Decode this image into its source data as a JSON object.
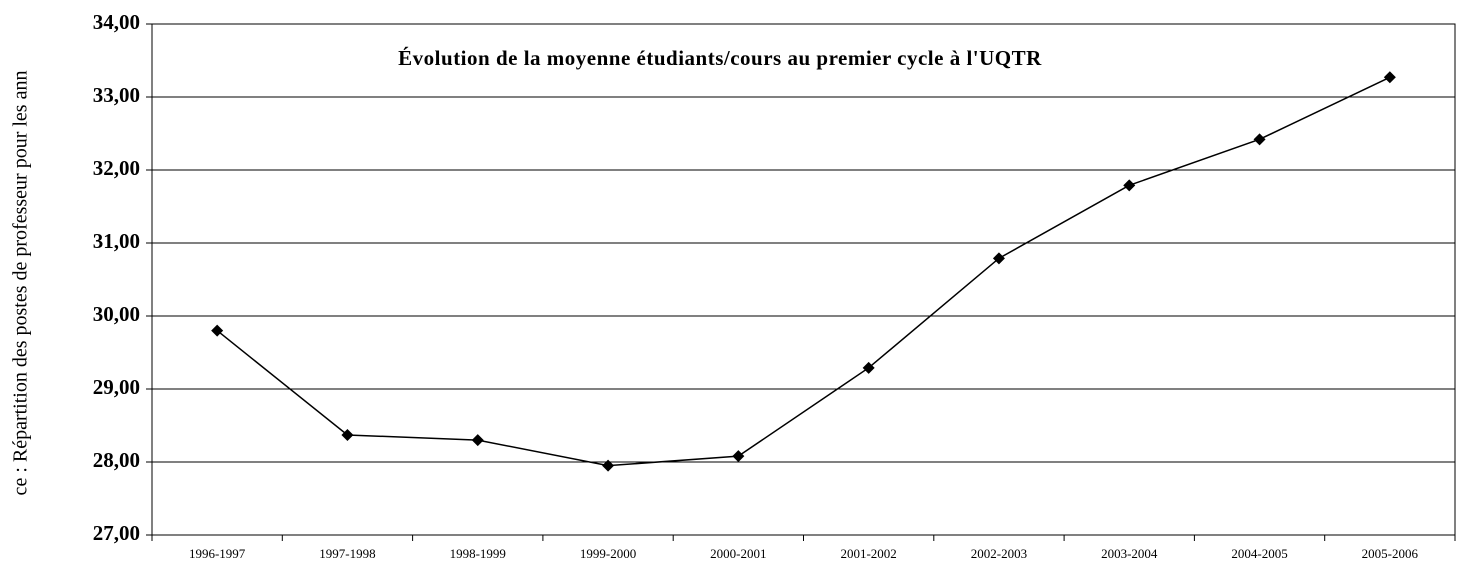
{
  "chart_data": {
    "type": "line",
    "title": "Évolution de la moyenne étudiants/cours au premier cycle à l'UQTR",
    "side_text": "ce : Répartition des postes de professeur pour les ann",
    "categories": [
      "1996-1997",
      "1997-1998",
      "1998-1999",
      "1999-2000",
      "2000-2001",
      "2001-2002",
      "2002-2003",
      "2003-2004",
      "2004-2005",
      "2005-2006"
    ],
    "series": [
      {
        "color": "#000000",
        "values": [
          29.8,
          28.37,
          28.3,
          27.95,
          28.08,
          29.29,
          30.79,
          31.79,
          32.42,
          33.27
        ]
      }
    ],
    "ylim": [
      27,
      34
    ],
    "yticks": [
      {
        "value": 27,
        "label": "27,00"
      },
      {
        "value": 28,
        "label": "28,00"
      },
      {
        "value": 29,
        "label": "29,00"
      },
      {
        "value": 30,
        "label": "30,00"
      },
      {
        "value": 31,
        "label": "31,00"
      },
      {
        "value": 32,
        "label": "32,00"
      },
      {
        "value": 33,
        "label": "33,00"
      },
      {
        "value": 34,
        "label": "34,00"
      }
    ],
    "grid": true
  }
}
